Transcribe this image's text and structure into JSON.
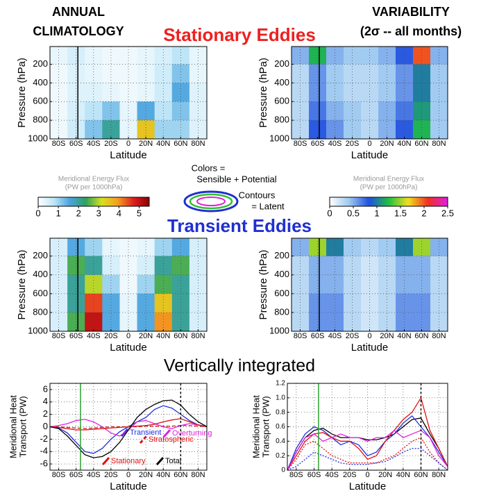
{
  "header": {
    "left": [
      "ANNUAL",
      "CLIMATOLOGY"
    ],
    "right": [
      "VARIABILITY",
      "(2σ -- all months)"
    ],
    "stationary": "Stationary Eddies",
    "transient": "Transient Eddies",
    "integrated": "Vertically integrated",
    "key": [
      "Colors =",
      "Sensible + Potential",
      "Contours",
      "= Latent"
    ]
  },
  "colorbars": [
    {
      "title": [
        "Meridional Energy Flux",
        "(PW per 1000hPa)"
      ],
      "lim": [
        0,
        5.5
      ],
      "ticks": [
        0,
        1,
        2,
        3,
        4,
        5
      ],
      "colormap": [
        "#ffffff",
        "#bfe6f7",
        "#4aa3df",
        "#2ca25f",
        "#d8e020",
        "#f5a020",
        "#e02020",
        "#8b0000"
      ]
    },
    {
      "title": [
        "Meridional Energy Flux",
        "(PW per 1000hPa)"
      ],
      "lim": [
        0,
        2.5
      ],
      "ticks": [
        0,
        0.5,
        1,
        1.5,
        2,
        2.5
      ],
      "colormap": [
        "#ffffff",
        "#9ec9f0",
        "#2050e0",
        "#20c040",
        "#f0e020",
        "#f03020",
        "#e020e0"
      ]
    }
  ],
  "chart_data": [
    {
      "type": "heatmap",
      "xlabel": "Latitude",
      "ylabel": "Pressure (hPa)",
      "x": [
        -80,
        -60,
        -40,
        -20,
        0,
        20,
        40,
        60,
        80
      ],
      "y": [
        100,
        300,
        500,
        700,
        900
      ],
      "z": [
        [
          0.3,
          0.5,
          0.3,
          0.2,
          0.2,
          0.3,
          0.5,
          0.8,
          0.3
        ],
        [
          0.2,
          0.4,
          0.3,
          0.2,
          0.2,
          0.3,
          0.6,
          1.2,
          0.3
        ],
        [
          0.2,
          0.4,
          0.4,
          0.3,
          0.2,
          0.3,
          0.6,
          1.5,
          0.4
        ],
        [
          0.2,
          0.5,
          0.8,
          1.2,
          0.3,
          1.5,
          0.8,
          1.2,
          0.4
        ],
        [
          0.2,
          0.6,
          1.2,
          2,
          0.3,
          3.5,
          1,
          1,
          0.4
        ]
      ],
      "zlim": [
        0,
        5.5
      ],
      "colormap": [
        "#ffffff",
        "#bfe6f7",
        "#4aa3df",
        "#2ca25f",
        "#d8e020",
        "#f5a020",
        "#e02020",
        "#8b0000"
      ],
      "xlim": [
        -90,
        90
      ],
      "ylim": [
        1000,
        10
      ],
      "xticks": [
        {
          "value": -80,
          "label": "80S"
        },
        {
          "value": -60,
          "label": "60S"
        },
        {
          "value": -40,
          "label": "40S"
        },
        {
          "value": -20,
          "label": "20S"
        },
        0,
        {
          "value": 20,
          "label": "20N"
        },
        {
          "value": 40,
          "label": "40N"
        },
        {
          "value": 60,
          "label": "60N"
        },
        {
          "value": 80,
          "label": "80N"
        }
      ],
      "yticks": [
        200,
        400,
        600,
        800,
        1000
      ],
      "grid": true,
      "vlines": [
        {
          "x": -58,
          "color": "#000000"
        }
      ]
    },
    {
      "type": "heatmap",
      "xlabel": "Latitude",
      "ylabel": "Pressure (hPa)",
      "x": [
        -80,
        -60,
        -40,
        -20,
        0,
        20,
        40,
        60,
        80
      ],
      "y": [
        100,
        300,
        500,
        700,
        900
      ],
      "z": [
        [
          0.5,
          1.2,
          0.5,
          0.4,
          0.4,
          0.5,
          0.8,
          2,
          0.5
        ],
        [
          0.3,
          0.6,
          0.4,
          0.3,
          0.3,
          0.4,
          0.6,
          1,
          0.4
        ],
        [
          0.3,
          0.6,
          0.4,
          0.3,
          0.3,
          0.4,
          0.6,
          1,
          0.4
        ],
        [
          0.3,
          0.7,
          0.5,
          0.4,
          0.3,
          0.5,
          0.7,
          1.1,
          0.4
        ],
        [
          0.3,
          0.8,
          0.6,
          0.4,
          0.3,
          0.5,
          0.8,
          1.2,
          0.4
        ]
      ],
      "zlim": [
        0,
        2.5
      ],
      "colormap": [
        "#ffffff",
        "#9ec9f0",
        "#2050e0",
        "#20c040",
        "#f0e020",
        "#f03020",
        "#e020e0"
      ],
      "xlim": [
        -90,
        90
      ],
      "ylim": [
        1000,
        10
      ],
      "xticks": [
        {
          "value": -80,
          "label": "80S"
        },
        {
          "value": -60,
          "label": "60S"
        },
        {
          "value": -40,
          "label": "40S"
        },
        {
          "value": -20,
          "label": "20S"
        },
        0,
        {
          "value": 20,
          "label": "20N"
        },
        {
          "value": 40,
          "label": "40N"
        },
        {
          "value": 60,
          "label": "60N"
        },
        {
          "value": 80,
          "label": "80N"
        }
      ],
      "yticks": [
        200,
        400,
        600,
        800,
        1000
      ],
      "grid": true,
      "vlines": [
        {
          "x": -58,
          "color": "#000000"
        }
      ]
    },
    {
      "type": "heatmap",
      "xlabel": "Latitude",
      "ylabel": "Pressure (hPa)",
      "x": [
        -80,
        -60,
        -40,
        -20,
        0,
        20,
        40,
        60,
        80
      ],
      "y": [
        100,
        300,
        500,
        700,
        900
      ],
      "z": [
        [
          0.5,
          1.5,
          1,
          0.3,
          0.2,
          0.3,
          1,
          1.5,
          0.5
        ],
        [
          0.5,
          2.5,
          2,
          0.5,
          0.2,
          0.5,
          2,
          2.5,
          0.5
        ],
        [
          0.5,
          2,
          3,
          1,
          0.2,
          1,
          2.5,
          2,
          0.5
        ],
        [
          0.5,
          2,
          4.5,
          1.5,
          0.3,
          1.5,
          3.5,
          2,
          0.5
        ],
        [
          0.5,
          2.5,
          5,
          1.5,
          0.3,
          1.5,
          4,
          2,
          0.5
        ]
      ],
      "zlim": [
        0,
        5.5
      ],
      "colormap": [
        "#ffffff",
        "#bfe6f7",
        "#4aa3df",
        "#2ca25f",
        "#d8e020",
        "#f5a020",
        "#e02020",
        "#8b0000"
      ],
      "xlim": [
        -90,
        90
      ],
      "ylim": [
        1000,
        10
      ],
      "xticks": [
        {
          "value": -80,
          "label": "80S"
        },
        {
          "value": -60,
          "label": "60S"
        },
        {
          "value": -40,
          "label": "40S"
        },
        {
          "value": -20,
          "label": "20S"
        },
        0,
        {
          "value": 20,
          "label": "20N"
        },
        {
          "value": 40,
          "label": "40N"
        },
        {
          "value": 60,
          "label": "60N"
        },
        {
          "value": 80,
          "label": "80N"
        }
      ],
      "yticks": [
        200,
        400,
        600,
        800,
        1000
      ],
      "grid": true,
      "vlines": [
        {
          "x": -58,
          "color": "#000000"
        }
      ]
    },
    {
      "type": "heatmap",
      "xlabel": "Latitude",
      "ylabel": "Pressure (hPa)",
      "x": [
        -80,
        -60,
        -40,
        -20,
        0,
        20,
        40,
        60,
        80
      ],
      "y": [
        100,
        300,
        500,
        700,
        900
      ],
      "z": [
        [
          0.5,
          1.5,
          1,
          0.4,
          0.3,
          0.4,
          1,
          1.5,
          0.5
        ],
        [
          0.3,
          0.5,
          0.5,
          0.3,
          0.2,
          0.3,
          0.5,
          0.5,
          0.3
        ],
        [
          0.3,
          0.5,
          0.5,
          0.3,
          0.2,
          0.3,
          0.5,
          0.5,
          0.3
        ],
        [
          0.3,
          0.6,
          0.6,
          0.3,
          0.2,
          0.3,
          0.6,
          0.6,
          0.3
        ],
        [
          0.3,
          0.6,
          0.6,
          0.3,
          0.2,
          0.3,
          0.6,
          0.6,
          0.3
        ]
      ],
      "zlim": [
        0,
        2.5
      ],
      "colormap": [
        "#ffffff",
        "#9ec9f0",
        "#2050e0",
        "#20c040",
        "#f0e020",
        "#f03020",
        "#e020e0"
      ],
      "xlim": [
        -90,
        90
      ],
      "ylim": [
        1000,
        10
      ],
      "xticks": [
        {
          "value": -80,
          "label": "80S"
        },
        {
          "value": -60,
          "label": "60S"
        },
        {
          "value": -40,
          "label": "40S"
        },
        {
          "value": -20,
          "label": "20S"
        },
        0,
        {
          "value": 20,
          "label": "20N"
        },
        {
          "value": 40,
          "label": "40N"
        },
        {
          "value": 60,
          "label": "60N"
        },
        {
          "value": 80,
          "label": "80N"
        }
      ],
      "yticks": [
        200,
        400,
        600,
        800,
        1000
      ],
      "grid": true,
      "vlines": [
        {
          "x": -58,
          "color": "#000000"
        }
      ]
    },
    {
      "type": "line",
      "xlabel": "Latitude",
      "ylabel": [
        "Meridional Heat",
        "Transport (PW)"
      ],
      "x": [
        -90,
        -80,
        -70,
        -60,
        -50,
        -40,
        -30,
        -20,
        -10,
        0,
        10,
        20,
        30,
        40,
        50,
        60,
        70,
        80,
        90
      ],
      "series": [
        {
          "name": "Transient",
          "color": "#1f2fe0",
          "dash": "solid",
          "values": [
            0,
            -0.2,
            -1,
            -2.5,
            -4,
            -4.3,
            -3.5,
            -2,
            -0.8,
            0,
            0.8,
            1.5,
            2.8,
            3.4,
            3,
            2,
            1,
            0.3,
            0
          ]
        },
        {
          "name": "Stratospheric",
          "color": "#e01010",
          "dash": "dashed",
          "values": [
            0,
            0,
            -0.1,
            -0.2,
            -0.3,
            -0.2,
            -0.1,
            0,
            0,
            0,
            0,
            0.1,
            0.1,
            0.1,
            0.1,
            0.2,
            0.2,
            0.1,
            0
          ]
        },
        {
          "name": "Overturning",
          "color": "#e020e0",
          "dash": "solid",
          "values": [
            0,
            0.2,
            0.5,
            1,
            1.2,
            0.8,
            0,
            -1,
            -1.5,
            -0.5,
            0.8,
            1,
            0.5,
            0,
            -0.3,
            0.2,
            0.5,
            0.3,
            0
          ]
        },
        {
          "name": "Stationary",
          "color": "#e01010",
          "dash": "solid",
          "values": [
            0,
            -0.1,
            -0.3,
            -0.5,
            -0.5,
            -0.4,
            -0.3,
            -0.2,
            -0.1,
            0,
            0.1,
            0.2,
            0.4,
            0.8,
            1.1,
            1.3,
            0.8,
            0.3,
            0
          ]
        },
        {
          "name": "Total",
          "color": "#000000",
          "dash": "solid",
          "values": [
            0,
            -0.3,
            -1.5,
            -3,
            -4.5,
            -5,
            -4.8,
            -4,
            -2.5,
            -0.5,
            1.5,
            2.8,
            3.6,
            4.2,
            4.3,
            3.5,
            2,
            0.8,
            0
          ]
        }
      ],
      "xlim": [
        -90,
        90
      ],
      "ylim": [
        -7,
        7
      ],
      "xticks": [
        {
          "value": -80,
          "label": "80S"
        },
        {
          "value": -60,
          "label": "60S"
        },
        {
          "value": -40,
          "label": "40S"
        },
        {
          "value": -20,
          "label": "20S"
        },
        0,
        {
          "value": 20,
          "label": "20N"
        },
        {
          "value": 40,
          "label": "40N"
        },
        {
          "value": 60,
          "label": "60N"
        },
        {
          "value": 80,
          "label": "80N"
        }
      ],
      "yticks": [
        -6,
        -4,
        -2,
        0,
        2,
        4,
        6
      ],
      "grid": true,
      "vlines": [
        {
          "x": -55,
          "color": "#2ca02c"
        },
        {
          "x": 60,
          "color": "#000000",
          "dash": true
        }
      ]
    },
    {
      "type": "line",
      "xlabel": "Latitude",
      "ylabel": [
        "Meridional Heat",
        "Transport (PW)"
      ],
      "x": [
        -90,
        -80,
        -70,
        -60,
        -50,
        -40,
        -30,
        -20,
        -10,
        0,
        10,
        20,
        30,
        40,
        50,
        60,
        70,
        80,
        90
      ],
      "series": [
        {
          "color": "#000000",
          "dash": "solid",
          "values": [
            0,
            0.25,
            0.45,
            0.55,
            0.58,
            0.5,
            0.45,
            0.45,
            0.45,
            0.42,
            0.42,
            0.45,
            0.5,
            0.6,
            0.7,
            0.72,
            0.5,
            0.3,
            0.05
          ]
        },
        {
          "color": "#1f2fe0",
          "dash": "solid",
          "values": [
            0,
            0.3,
            0.5,
            0.6,
            0.55,
            0.45,
            0.35,
            0.4,
            0.35,
            0.2,
            0.25,
            0.4,
            0.5,
            0.65,
            0.75,
            0.6,
            0.45,
            0.25,
            0.05
          ]
        },
        {
          "color": "#e01010",
          "dash": "solid",
          "values": [
            0,
            0.2,
            0.4,
            0.5,
            0.52,
            0.45,
            0.4,
            0.4,
            0.3,
            0.15,
            0.2,
            0.4,
            0.55,
            0.7,
            0.8,
            1,
            0.55,
            0.3,
            0.05
          ]
        },
        {
          "color": "#e020e0",
          "dash": "solid",
          "values": [
            0,
            0.25,
            0.45,
            0.5,
            0.4,
            0.45,
            0.5,
            0.45,
            0.45,
            0.4,
            0.45,
            0.45,
            0.55,
            0.45,
            0.5,
            0.55,
            0.45,
            0.2,
            0.05
          ]
        },
        {
          "color": "#e01010",
          "dash": "dotted",
          "values": [
            0,
            0.15,
            0.35,
            0.4,
            0.3,
            0.2,
            0.15,
            0.1,
            0.1,
            0.1,
            0.1,
            0.15,
            0.2,
            0.3,
            0.4,
            0.45,
            0.25,
            0.1,
            0
          ]
        },
        {
          "color": "#1f2fe0",
          "dash": "dotted",
          "values": [
            0,
            0.05,
            0.15,
            0.25,
            0.2,
            0.15,
            0.1,
            0.08,
            0.08,
            0.08,
            0.1,
            0.12,
            0.18,
            0.25,
            0.3,
            0.3,
            0.2,
            0.1,
            0
          ]
        }
      ],
      "xlim": [
        -90,
        90
      ],
      "ylim": [
        0,
        1.2
      ],
      "xticks": [
        {
          "value": -80,
          "label": "80S"
        },
        {
          "value": -60,
          "label": "60S"
        },
        {
          "value": -40,
          "label": "40S"
        },
        {
          "value": -20,
          "label": "20S"
        },
        0,
        {
          "value": 20,
          "label": "20N"
        },
        {
          "value": 40,
          "label": "40N"
        },
        {
          "value": 60,
          "label": "60N"
        },
        {
          "value": 80,
          "label": "80N"
        }
      ],
      "yticks": [
        0,
        0.2,
        0.4,
        0.6,
        0.8,
        {
          "value": 1,
          "label": "1.0"
        },
        1.2
      ],
      "grid": true,
      "vlines": [
        {
          "x": -55,
          "color": "#2ca02c"
        },
        {
          "x": 60,
          "color": "#000000",
          "dash": true
        }
      ]
    }
  ]
}
